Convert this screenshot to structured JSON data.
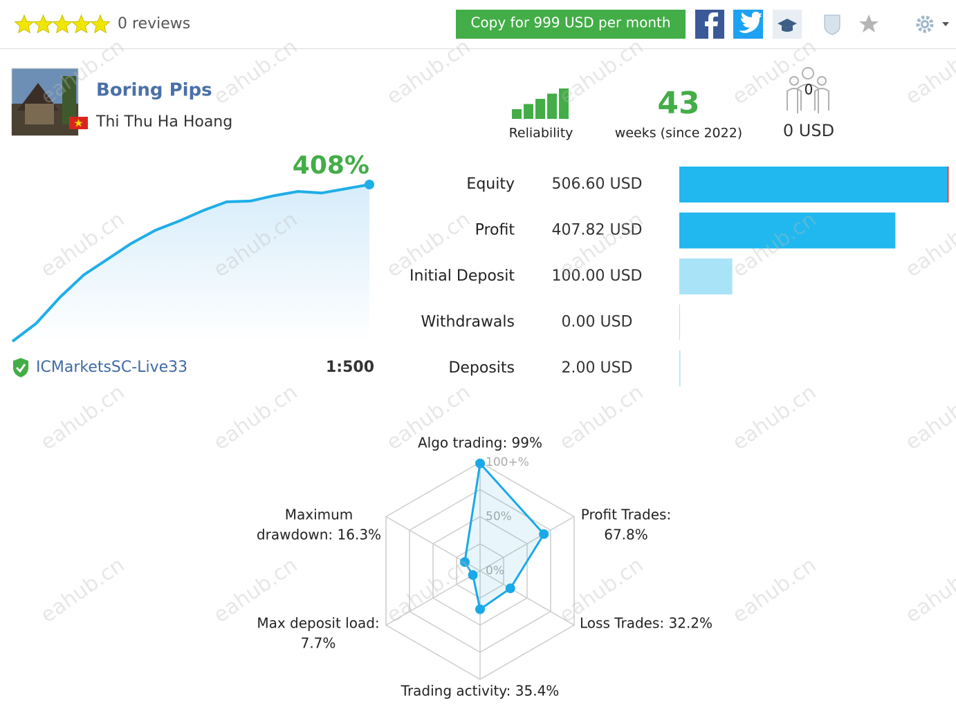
{
  "header": {
    "rating": 5,
    "reviews": "0 reviews",
    "copy_button": "Copy for 999 USD per month"
  },
  "profile": {
    "name": "Boring Pips",
    "author": "Thi Thu Ha Hoang"
  },
  "stats": {
    "reliability_level": 5,
    "reliability_label": "Reliability",
    "weeks": "43",
    "weeks_label": "weeks (since 2022)",
    "subscribers": "0",
    "subscribers_funds": "0 USD"
  },
  "growth": {
    "total": {
      "value": 408,
      "label": "408%"
    },
    "values": [
      0,
      47,
      115,
      173,
      214,
      255,
      289,
      313,
      340,
      363,
      365,
      379,
      390,
      386,
      397,
      408
    ],
    "broker": "ICMarketsSC-Live33",
    "leverage": "1:500"
  },
  "balance": {
    "rows": [
      {
        "label": "Equity",
        "value": 506.6,
        "value_label": "506.60 USD",
        "color": "#20b8ef"
      },
      {
        "label": "Profit",
        "value": 407.82,
        "value_label": "407.82 USD",
        "color": "#20b8ef"
      },
      {
        "label": "Initial Deposit",
        "value": 100,
        "value_label": "100.00 USD",
        "color": "#a9e3f8"
      },
      {
        "label": "Withdrawals",
        "value": 0,
        "value_label": "0.00 USD",
        "color": "#a9e3f8"
      },
      {
        "label": "Deposits",
        "value": 2,
        "value_label": "2.00 USD",
        "color": "#a9e3f8"
      }
    ]
  },
  "radar": {
    "type": "radar",
    "color": "#1aa9e6",
    "rticks": [
      {
        "value": 0,
        "label": "0%"
      },
      {
        "value": 50,
        "label": "50%"
      },
      {
        "value": 100,
        "label": "100+%"
      }
    ],
    "axes": [
      {
        "label_lines": [
          "Algo trading: 99%"
        ],
        "value": 99
      },
      {
        "label_lines": [
          "Profit Trades:",
          "67.8%"
        ],
        "value": 67.8
      },
      {
        "label_lines": [
          "Loss Trades: 32.2%"
        ],
        "value": 32.2
      },
      {
        "label_lines": [
          "Trading activity: 35.4%"
        ],
        "value": 35.4
      },
      {
        "label_lines": [
          "Max deposit load:",
          "7.7%"
        ],
        "value": 7.7
      },
      {
        "label_lines": [
          "Maximum",
          "drawdown: 16.3%"
        ],
        "value": 16.3
      }
    ]
  },
  "watermark": "eahub.cn"
}
